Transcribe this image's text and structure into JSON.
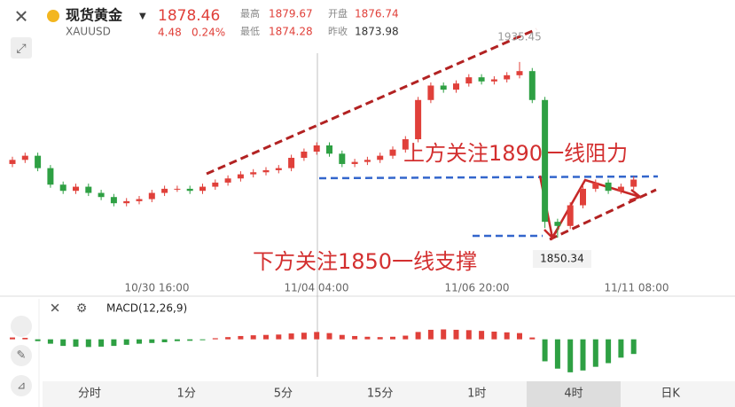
{
  "header": {
    "name": "现货黄金",
    "symbol": "XAUUSD",
    "price": 1878.46,
    "change": 4.48,
    "change_pct": "0.24%",
    "high_label": "最高",
    "high": 1879.67,
    "open_label": "开盘",
    "open": 1876.74,
    "low_label": "最低",
    "low": 1874.28,
    "prev_label": "昨收",
    "prev": 1873.98
  },
  "chart_data": {
    "type": "candlestick",
    "open": [
      1886,
      1888,
      1890,
      1884,
      1876,
      1873,
      1875,
      1872,
      1870,
      1867,
      1868,
      1869,
      1872,
      1874,
      1874,
      1873,
      1875,
      1877,
      1879,
      1881,
      1882,
      1883,
      1884,
      1889,
      1892,
      1895,
      1891,
      1886,
      1887,
      1888,
      1890,
      1893,
      1898,
      1917,
      1924,
      1922,
      1925,
      1928,
      1926,
      1927,
      1929,
      1931,
      1917,
      1858,
      1856,
      1866,
      1874,
      1877,
      1873,
      1875
    ],
    "close": [
      1888,
      1890,
      1884,
      1876,
      1873,
      1875,
      1872,
      1870,
      1867,
      1868,
      1869,
      1872,
      1874,
      1874,
      1873,
      1875,
      1877,
      1879,
      1881,
      1882,
      1883,
      1884,
      1889,
      1892,
      1895,
      1891,
      1886,
      1887,
      1888,
      1890,
      1893,
      1898,
      1917,
      1924,
      1922,
      1925,
      1928,
      1926,
      1927,
      1929,
      1931,
      1917,
      1858,
      1856,
      1866,
      1874,
      1877,
      1873,
      1875,
      1878.46
    ],
    "high": [
      1889.5,
      1891.5,
      1891.5,
      1885.5,
      1877.5,
      1876.5,
      1876.5,
      1873.5,
      1871.5,
      1869.5,
      1870.5,
      1873.5,
      1875.5,
      1875.5,
      1875.5,
      1876.5,
      1878.5,
      1880.5,
      1882.5,
      1883.5,
      1884.5,
      1885.5,
      1890.5,
      1893.5,
      1896.5,
      1896.5,
      1892.5,
      1888.5,
      1889.5,
      1891.5,
      1894.5,
      1899.5,
      1918.5,
      1925.5,
      1925.5,
      1926.5,
      1929.5,
      1929.5,
      1928.5,
      1930.5,
      1935.45,
      1932.5,
      1918.5,
      1859.5,
      1867.5,
      1875.5,
      1878.5,
      1878.5,
      1876.5,
      1880
    ],
    "low": [
      1884.5,
      1886.5,
      1882.5,
      1874.5,
      1871.5,
      1871.5,
      1870.5,
      1868.5,
      1865.5,
      1865.5,
      1866.5,
      1867.5,
      1870.5,
      1872.5,
      1871.5,
      1871.5,
      1873.5,
      1875.5,
      1877.5,
      1879.5,
      1880.5,
      1881.5,
      1882.5,
      1887.5,
      1890.5,
      1889.5,
      1884.5,
      1884.5,
      1885.5,
      1886.5,
      1888.5,
      1891.5,
      1896.5,
      1915.5,
      1920.5,
      1920.5,
      1923.5,
      1924.5,
      1924.5,
      1925.5,
      1927.5,
      1915.5,
      1855,
      1850.34,
      1854.5,
      1864.5,
      1872.5,
      1871.5,
      1871.5,
      1873.5
    ],
    "ylim": [
      1828,
      1962
    ],
    "up_color": "#e0403a",
    "down_color": "#2ea043",
    "x_labels": [
      "10/30 16:00",
      "11/04 04:00",
      "11/06 20:00",
      "11/11 08:00"
    ],
    "annotations": [
      "上方关注1890一线阻力",
      "下方关注1850一线支撑"
    ],
    "macd": {
      "name": "MACD(12,26,9)",
      "values": [
        0.5,
        0.4,
        -0.5,
        -1.2,
        -1.8,
        -2,
        -2.1,
        -2,
        -1.8,
        -1.5,
        -1.2,
        -1,
        -0.8,
        -0.5,
        -0.4,
        -0.2,
        0.3,
        0.6,
        0.9,
        1.1,
        1.2,
        1.3,
        1.6,
        1.8,
        2,
        1.7,
        1.2,
        0.9,
        0.7,
        0.6,
        0.7,
        1,
        2,
        2.6,
        2.7,
        2.6,
        2.5,
        2.3,
        2.1,
        1.9,
        1.7,
        0.5,
        -6,
        -8,
        -9,
        -8.5,
        -7.5,
        -6.5,
        -5,
        -4
      ],
      "ylim": [
        -10,
        5
      ]
    }
  },
  "tabs": [
    "分时",
    "1分",
    "5分",
    "15分",
    "1时",
    "4时",
    "日K"
  ]
}
